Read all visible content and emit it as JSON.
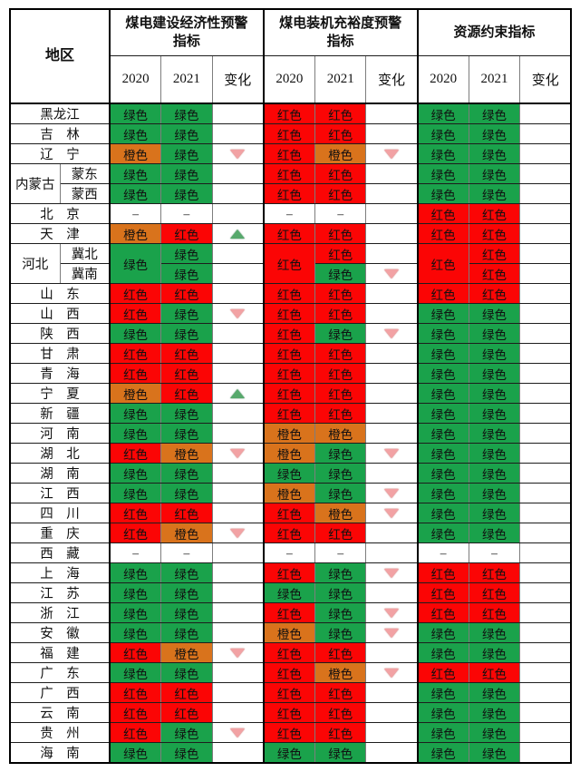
{
  "colors": {
    "green": "#1AA24B",
    "red": "#FB0505",
    "orange": "#D9731C",
    "triangle_down_fill": "#F2A2A4",
    "triangle_down_edge": "#B8413F",
    "triangle_up_fill": "#57A96C",
    "triangle_up_edge": "#2E6E44"
  },
  "table": {
    "region_header": "地区",
    "groups": [
      {
        "title": "煤电建设经济性预警\n指标",
        "cols": [
          "2020",
          "2021",
          "变化"
        ]
      },
      {
        "title": "煤电装机充裕度预警\n指标",
        "cols": [
          "2020",
          "2021",
          "变化"
        ]
      },
      {
        "title": "资源约束指标",
        "cols": [
          "2020",
          "2021",
          "变化"
        ]
      }
    ],
    "cell_labels": {
      "green": "绿色",
      "red": "红色",
      "orange": "橙色",
      "dash": "–",
      "up": "",
      "down": ""
    },
    "rows": [
      {
        "region": "黑龙江",
        "cells": [
          "green",
          "green",
          "",
          "red",
          "red",
          "",
          "green",
          "green",
          ""
        ]
      },
      {
        "region": "吉　林",
        "cells": [
          "green",
          "green",
          "",
          "red",
          "red",
          "",
          "green",
          "green",
          ""
        ]
      },
      {
        "region": "辽　宁",
        "cells": [
          "orange",
          "green",
          "down",
          "red",
          "orange",
          "down",
          "green",
          "green",
          ""
        ]
      },
      {
        "region": "内蒙古",
        "region_rowspan": 2,
        "sub": "蒙东",
        "cells": [
          "green",
          "green",
          "",
          "red",
          "red",
          "",
          "green",
          "green",
          ""
        ]
      },
      {
        "sub": "蒙西",
        "cells": [
          "green",
          "green",
          "",
          "red",
          "red",
          "",
          "green",
          "green",
          ""
        ]
      },
      {
        "region": "北　京",
        "cells": [
          "dash",
          "dash",
          "",
          "dash",
          "dash",
          "",
          "red",
          "red",
          ""
        ]
      },
      {
        "region": "天　津",
        "cells": [
          "orange",
          "red",
          "up",
          "red",
          "red",
          "",
          "red",
          "red",
          ""
        ]
      },
      {
        "region": "河北",
        "region_rowspan": 2,
        "sub": "冀北",
        "cells": [
          {
            "t": "green",
            "rs": 2,
            "sep": true
          },
          "green",
          "",
          {
            "t": "red",
            "rs": 2,
            "sep": true
          },
          "red",
          "",
          {
            "t": "red",
            "rs": 2,
            "sep": true
          },
          "red",
          ""
        ]
      },
      {
        "sub": "冀南",
        "cells": [
          "green",
          "",
          "green",
          "down",
          "red",
          ""
        ]
      },
      {
        "region": "山　东",
        "cells": [
          "red",
          "red",
          "",
          "red",
          "red",
          "",
          "red",
          "red",
          ""
        ]
      },
      {
        "region": "山　西",
        "cells": [
          "red",
          "green",
          "down",
          "red",
          "red",
          "",
          "green",
          "green",
          ""
        ]
      },
      {
        "region": "陕　西",
        "cells": [
          "green",
          "green",
          "",
          "red",
          "green",
          "down",
          "green",
          "green",
          ""
        ]
      },
      {
        "region": "甘　肃",
        "cells": [
          "red",
          "red",
          "",
          "red",
          "red",
          "",
          "green",
          "green",
          ""
        ]
      },
      {
        "region": "青　海",
        "cells": [
          "red",
          "red",
          "",
          "red",
          "red",
          "",
          "green",
          "green",
          ""
        ]
      },
      {
        "region": "宁　夏",
        "cells": [
          "orange",
          "red",
          "up",
          "red",
          "red",
          "",
          "green",
          "green",
          ""
        ]
      },
      {
        "region": "新　疆",
        "cells": [
          "green",
          "green",
          "",
          "red",
          "red",
          "",
          "green",
          "green",
          ""
        ]
      },
      {
        "region": "河　南",
        "cells": [
          "green",
          "green",
          "",
          "orange",
          "orange",
          "",
          "green",
          "green",
          ""
        ]
      },
      {
        "region": "湖　北",
        "cells": [
          "red",
          "orange",
          "down",
          "orange",
          "green",
          "down",
          "green",
          "green",
          ""
        ]
      },
      {
        "region": "湖　南",
        "cells": [
          "green",
          "green",
          "",
          "green",
          "green",
          "",
          "green",
          "green",
          ""
        ]
      },
      {
        "region": "江　西",
        "cells": [
          "green",
          "green",
          "",
          "orange",
          "green",
          "down",
          "green",
          "green",
          ""
        ]
      },
      {
        "region": "四　川",
        "cells": [
          "red",
          "red",
          "",
          "red",
          "orange",
          "down",
          "green",
          "green",
          ""
        ]
      },
      {
        "region": "重　庆",
        "cells": [
          "red",
          "orange",
          "down",
          "red",
          "red",
          "",
          "green",
          "green",
          ""
        ]
      },
      {
        "region": "西　藏",
        "cells": [
          "dash",
          "dash",
          "",
          "dash",
          "dash",
          "",
          "dash",
          "dash",
          ""
        ]
      },
      {
        "region": "上　海",
        "cells": [
          "green",
          "green",
          "",
          "red",
          "green",
          "down",
          "red",
          "red",
          ""
        ]
      },
      {
        "region": "江　苏",
        "cells": [
          "green",
          "green",
          "",
          "green",
          "green",
          "",
          "red",
          "red",
          ""
        ]
      },
      {
        "region": "浙　江",
        "cells": [
          "green",
          "green",
          "",
          "red",
          "green",
          "down",
          "red",
          "red",
          ""
        ]
      },
      {
        "region": "安　徽",
        "cells": [
          "green",
          "green",
          "",
          "orange",
          "green",
          "down",
          "green",
          "green",
          ""
        ]
      },
      {
        "region": "福　建",
        "cells": [
          "red",
          "orange",
          "down",
          "red",
          "red",
          "",
          "green",
          "green",
          ""
        ]
      },
      {
        "region": "广　东",
        "cells": [
          "green",
          "green",
          "",
          "red",
          "orange",
          "down",
          "red",
          "red",
          ""
        ]
      },
      {
        "region": "广　西",
        "cells": [
          "red",
          "red",
          "",
          "red",
          "red",
          "",
          "green",
          "green",
          ""
        ]
      },
      {
        "region": "云　南",
        "cells": [
          "red",
          "red",
          "",
          "red",
          "red",
          "",
          "green",
          "green",
          ""
        ]
      },
      {
        "region": "贵　州",
        "cells": [
          "red",
          "green",
          "down",
          "red",
          "red",
          "",
          "green",
          "green",
          ""
        ]
      },
      {
        "region": "海　南",
        "cells": [
          "green",
          "green",
          "",
          "green",
          "green",
          "",
          "green",
          "green",
          ""
        ]
      }
    ]
  }
}
